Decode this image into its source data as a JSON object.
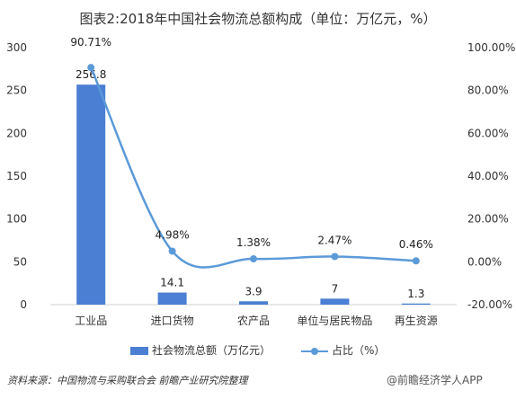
{
  "title": "图表2:2018年中国社会物流总额构成（单位：万亿元，%）",
  "source": "资料来源：中国物流与采购联合会 前瞻产业研究院整理",
  "watermark": "@前瞻经济学人APP",
  "colors": {
    "bar": "#4a7fd4",
    "line": "#5b9ad9"
  },
  "chart_data": {
    "type": "bar+line",
    "categories": [
      "工业品",
      "进口货物",
      "农产品",
      "单位与居民物品",
      "再生资源"
    ],
    "series": [
      {
        "name": "社会物流总额（万亿元）",
        "type": "bar",
        "axis": "left",
        "values": [
          256.8,
          14.1,
          3.9,
          7,
          1.3
        ],
        "labels": [
          "256.8",
          "14.1",
          "3.9",
          "7",
          "1.3"
        ]
      },
      {
        "name": "占比（%）",
        "type": "line",
        "axis": "right",
        "smooth": true,
        "values": [
          90.71,
          4.98,
          1.38,
          2.47,
          0.46
        ],
        "labels": [
          "90.71%",
          "4.98%",
          "1.38%",
          "2.47%",
          "0.46%"
        ]
      }
    ],
    "y_left": {
      "min": 0,
      "max": 300,
      "ticks": [
        "0",
        "50",
        "100",
        "150",
        "200",
        "250",
        "300"
      ]
    },
    "y_right": {
      "min": -20,
      "max": 100,
      "ticks": [
        "-20.00%",
        "0.00%",
        "20.00%",
        "40.00%",
        "60.00%",
        "80.00%",
        "100.00%"
      ]
    },
    "grid": false,
    "legend_position": "bottom"
  }
}
